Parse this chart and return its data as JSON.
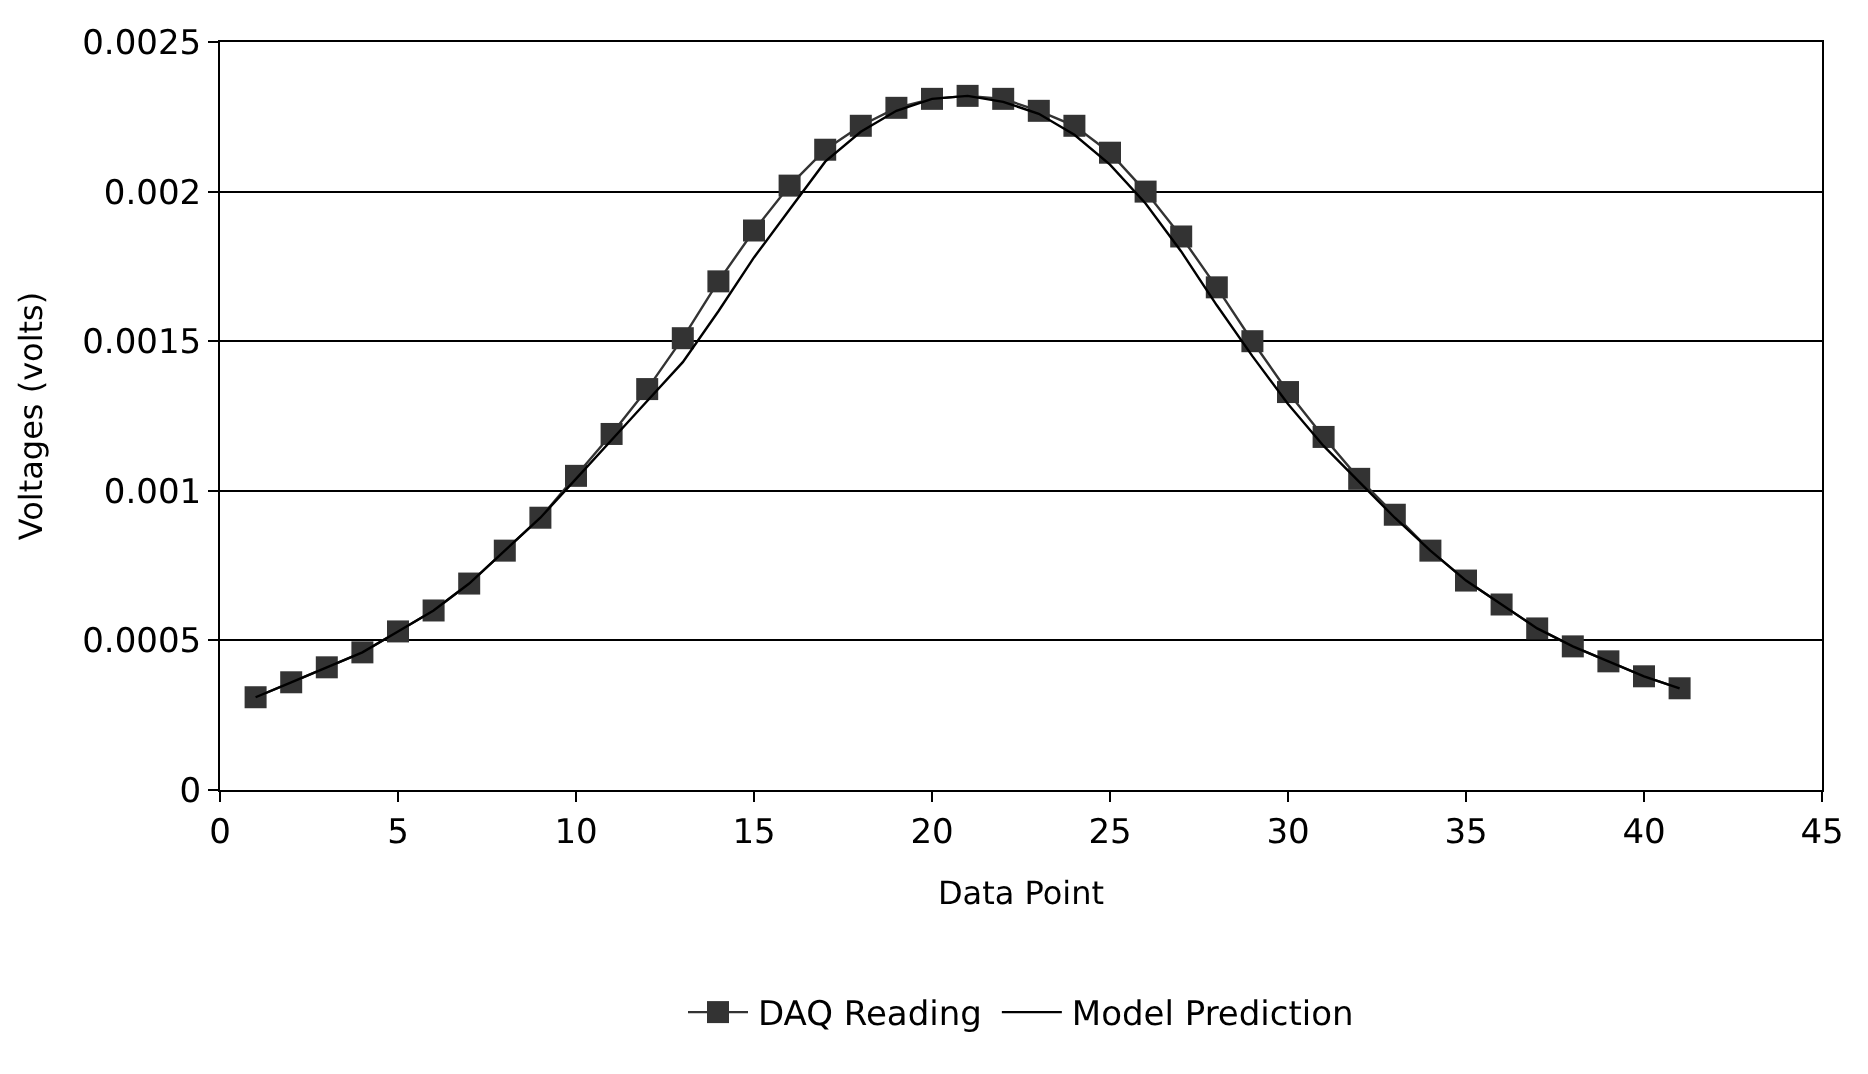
{
  "chart_data": {
    "type": "line",
    "xlabel": "Data Point",
    "ylabel": "Voltages (volts)",
    "x": [
      1,
      2,
      3,
      4,
      5,
      6,
      7,
      8,
      9,
      10,
      11,
      12,
      13,
      14,
      15,
      16,
      17,
      18,
      19,
      20,
      21,
      22,
      23,
      24,
      25,
      26,
      27,
      28,
      29,
      30,
      31,
      32,
      33,
      34,
      35,
      36,
      37,
      38,
      39,
      40,
      41
    ],
    "series": [
      {
        "name": "DAQ Reading",
        "color": "#333333",
        "marker": "square",
        "values": [
          0.00031,
          0.00036,
          0.00041,
          0.00046,
          0.00053,
          0.0006,
          0.00069,
          0.0008,
          0.00091,
          0.00105,
          0.00119,
          0.00134,
          0.00151,
          0.0017,
          0.00187,
          0.00202,
          0.00214,
          0.00222,
          0.00228,
          0.00231,
          0.00232,
          0.00231,
          0.00227,
          0.00222,
          0.00213,
          0.002,
          0.00185,
          0.00168,
          0.0015,
          0.00133,
          0.00118,
          0.00104,
          0.00092,
          0.0008,
          0.0007,
          0.00062,
          0.00054,
          0.00048,
          0.00043,
          0.00038,
          0.00034
        ]
      },
      {
        "name": "Model Prediction",
        "color": "#000000",
        "marker": "none",
        "values": [
          0.00031,
          0.00036,
          0.00041,
          0.00046,
          0.00053,
          0.0006,
          0.00069,
          0.0008,
          0.00091,
          0.00104,
          0.00117,
          0.0013,
          0.00143,
          0.0016,
          0.00178,
          0.00194,
          0.0021,
          0.0022,
          0.00227,
          0.00231,
          0.00232,
          0.0023,
          0.00226,
          0.00219,
          0.00209,
          0.00196,
          0.0018,
          0.00162,
          0.00145,
          0.00129,
          0.00115,
          0.00103,
          0.00091,
          0.0008,
          0.0007,
          0.00062,
          0.00054,
          0.00048,
          0.00043,
          0.00038,
          0.00034
        ]
      }
    ],
    "xlim": [
      0,
      45
    ],
    "xticks": [
      0,
      5,
      10,
      15,
      20,
      25,
      30,
      35,
      40,
      45
    ],
    "ylim": [
      0,
      0.0025
    ],
    "yticks": [
      0,
      0.0005,
      0.001,
      0.0015,
      0.002,
      0.0025
    ],
    "grid": "y",
    "legend": "bottom",
    "line_style": "solid"
  }
}
